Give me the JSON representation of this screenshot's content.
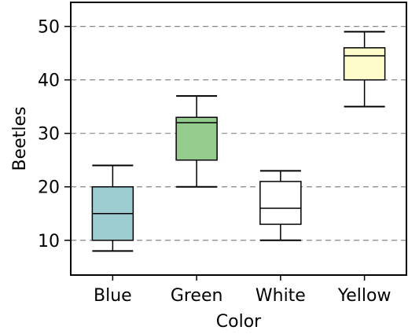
{
  "chart_data": {
    "type": "box",
    "title": "",
    "xlabel": "Color",
    "ylabel": "Beetles",
    "ylim": [
      3.5,
      54.5
    ],
    "yticks": [
      10,
      20,
      30,
      40,
      50
    ],
    "grid": "horizontal-dashed",
    "categories": [
      "Blue",
      "Green",
      "White",
      "Yellow"
    ],
    "boxes": [
      {
        "category": "Blue",
        "whisker_low": 8,
        "q1": 10,
        "median": 15,
        "q3": 20,
        "whisker_high": 24,
        "color": "#9ccccf"
      },
      {
        "category": "Green",
        "whisker_low": 20,
        "q1": 25,
        "median": 32,
        "q3": 33,
        "whisker_high": 37,
        "color": "#94cc8e"
      },
      {
        "category": "White",
        "whisker_low": 10,
        "q1": 13,
        "median": 16,
        "q3": 21,
        "whisker_high": 23,
        "color": "#ffffff"
      },
      {
        "category": "Yellow",
        "whisker_low": 35,
        "q1": 40,
        "median": 44.5,
        "q3": 46,
        "whisker_high": 49,
        "color": "#fffccc"
      }
    ]
  }
}
